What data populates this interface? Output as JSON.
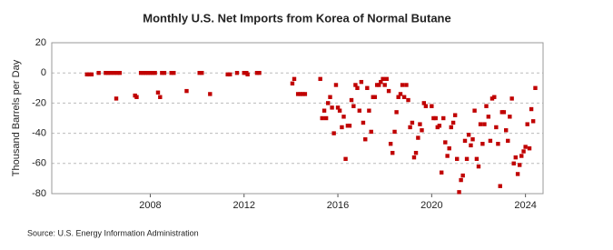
{
  "chart_data": {
    "type": "scatter",
    "title": "Monthly U.S. Net Imports from Korea of Normal Butane",
    "y_label": "Thousand Barrels per Day",
    "source": "Source: U.S. Energy Information Administration",
    "color": "#c00000",
    "grid": true,
    "xlim": [
      2003.8,
      2024.75
    ],
    "xticks": [
      2008,
      2012,
      2016,
      2020,
      2024
    ],
    "ylim": [
      -80,
      20
    ],
    "yticks": [
      -80,
      -60,
      -40,
      -20,
      0,
      20
    ],
    "x": [
      2005.3,
      2005.4,
      2005.5,
      2005.8,
      2006.1,
      2006.2,
      2006.3,
      2006.45,
      2006.55,
      2006.6,
      2006.7,
      2007.35,
      2007.42,
      2007.6,
      2007.7,
      2007.8,
      2007.9,
      2008.0,
      2008.1,
      2008.2,
      2008.33,
      2008.42,
      2008.5,
      2008.6,
      2008.9,
      2009.0,
      2009.55,
      2010.1,
      2010.2,
      2010.55,
      2011.3,
      2011.4,
      2011.7,
      2012.0,
      2012.1,
      2012.15,
      2012.55,
      2012.65,
      2014.06,
      2014.14,
      2014.3,
      2014.4,
      2014.5,
      2014.6,
      2015.25,
      2015.33,
      2015.42,
      2015.5,
      2015.58,
      2015.67,
      2015.75,
      2015.83,
      2015.92,
      2016.0,
      2016.08,
      2016.17,
      2016.25,
      2016.33,
      2016.42,
      2016.5,
      2016.58,
      2016.67,
      2016.75,
      2016.83,
      2016.92,
      2017.0,
      2017.08,
      2017.17,
      2017.25,
      2017.33,
      2017.42,
      2017.5,
      2017.58,
      2017.67,
      2017.75,
      2017.83,
      2017.92,
      2018.0,
      2018.08,
      2018.17,
      2018.25,
      2018.33,
      2018.42,
      2018.5,
      2018.58,
      2018.67,
      2018.75,
      2018.83,
      2018.92,
      2019.0,
      2019.08,
      2019.17,
      2019.25,
      2019.33,
      2019.42,
      2019.5,
      2019.58,
      2019.67,
      2019.75,
      2020.0,
      2020.08,
      2020.17,
      2020.25,
      2020.33,
      2020.42,
      2020.5,
      2020.58,
      2020.67,
      2020.75,
      2020.83,
      2020.92,
      2021.0,
      2021.08,
      2021.17,
      2021.25,
      2021.33,
      2021.42,
      2021.5,
      2021.58,
      2021.67,
      2021.75,
      2021.83,
      2021.92,
      2022.0,
      2022.08,
      2022.17,
      2022.25,
      2022.33,
      2022.42,
      2022.5,
      2022.58,
      2022.67,
      2022.75,
      2022.83,
      2022.92,
      2023.0,
      2023.08,
      2023.17,
      2023.25,
      2023.33,
      2023.42,
      2023.5,
      2023.58,
      2023.67,
      2023.75,
      2023.83,
      2023.92,
      2024.0,
      2024.08,
      2024.17,
      2024.25,
      2024.33,
      2024.42
    ],
    "values": [
      -1,
      -1,
      -1,
      0,
      0,
      0,
      0,
      0,
      -17,
      0,
      0,
      -15,
      -16,
      0,
      0,
      0,
      0,
      0,
      0,
      0,
      -13,
      -16,
      0,
      0,
      0,
      0,
      -12,
      0,
      0,
      -14,
      -1,
      -1,
      0,
      0,
      0,
      -1,
      0,
      0,
      -7,
      -4,
      -14,
      -14,
      -14,
      -14,
      -4,
      -30,
      -25,
      -30,
      -20,
      -16,
      -23,
      -40,
      -8,
      -23,
      -25,
      -36,
      -29,
      -57,
      -35,
      -35,
      -18,
      -22,
      -8,
      -10,
      -25,
      -6,
      -33,
      -44,
      -10,
      -25,
      -39,
      -16,
      -16,
      -8,
      -8,
      -6,
      -4,
      -8,
      -4,
      -12,
      -47,
      -53,
      -39,
      -26,
      -16,
      -14,
      -8,
      -16,
      -8,
      -18,
      -36,
      -33,
      -56,
      -53,
      -43,
      -34,
      -38,
      -20,
      -22,
      -22,
      -30,
      -30,
      -36,
      -35,
      -66,
      -30,
      -46,
      -55,
      -50,
      -36,
      -33,
      -28,
      -57,
      -79,
      -71,
      -68,
      -45,
      -57,
      -41,
      -48,
      -44,
      -25,
      -57,
      -62,
      -34,
      -47,
      -34,
      -22,
      -29,
      -45,
      -17,
      -16,
      -36,
      -47,
      -75,
      -26,
      -26,
      -38,
      -45,
      -29,
      -17,
      -60,
      -56,
      -67,
      -61,
      -55,
      -52,
      -49,
      -34,
      -50,
      -24,
      -32,
      -10
    ]
  }
}
